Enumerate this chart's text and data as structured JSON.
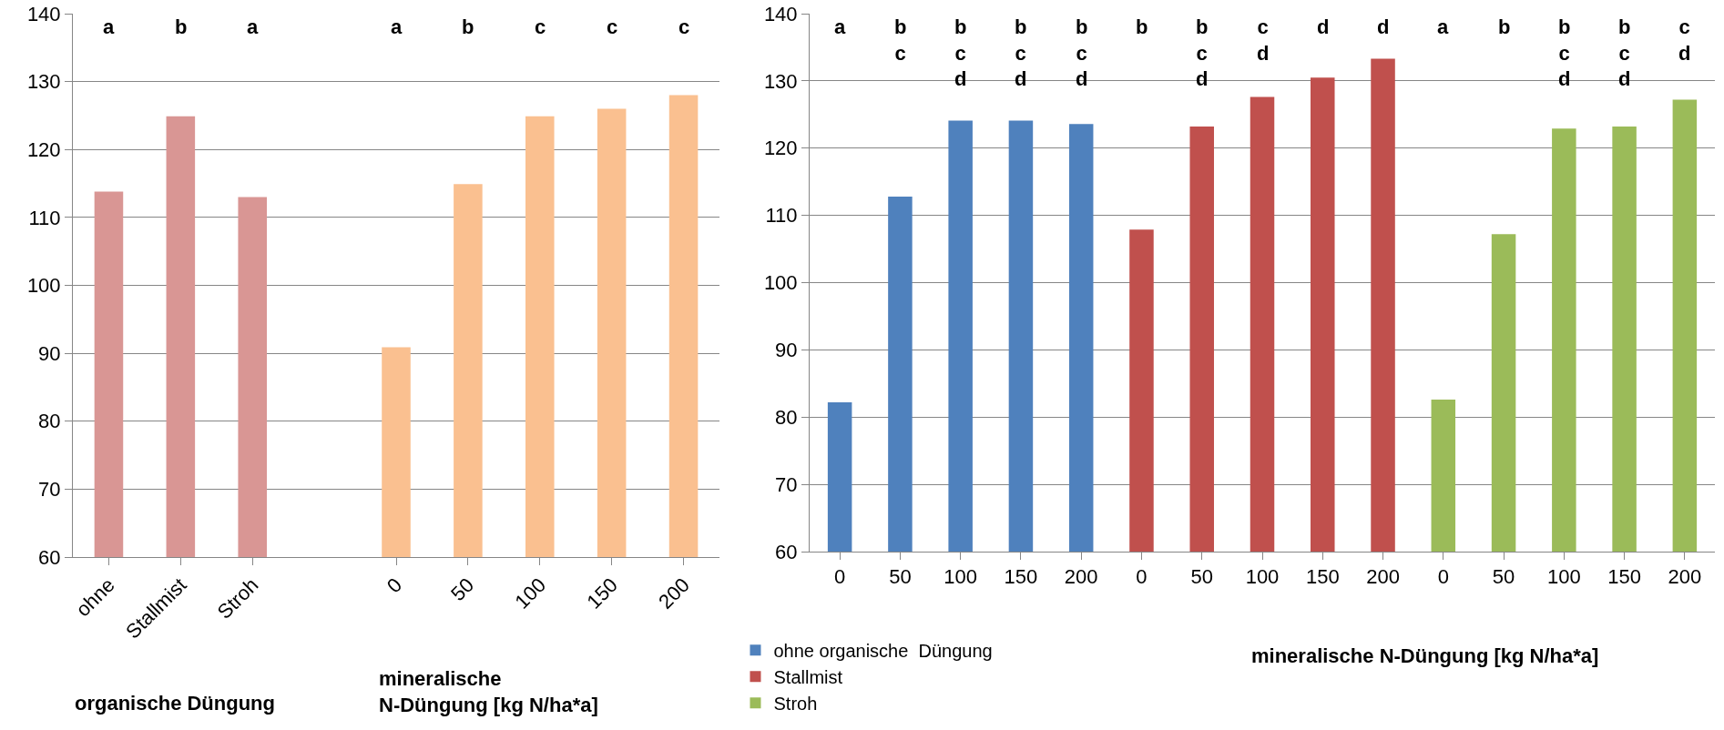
{
  "chart_data": [
    {
      "type": "bar",
      "categories": [
        "ohne",
        "Stallmist",
        "Stroh",
        null,
        "0",
        "50",
        "100",
        "150",
        "200"
      ],
      "values": [
        113.8,
        124.9,
        113,
        null,
        90.9,
        114.9,
        124.9,
        126,
        128
      ],
      "colors": [
        "#d99694",
        "#d99694",
        "#d99694",
        "#d99694",
        "#fac090",
        "#fac090",
        "#fac090",
        "#fac090",
        "#fac090"
      ],
      "xlabel": "mineralische\nN-Düngung [kg N/ha*a]",
      "ylim": [
        60,
        140
      ],
      "yticks": [
        60,
        70,
        80,
        90,
        100,
        110,
        120,
        130,
        140
      ],
      "grid": "y",
      "legend": false,
      "annotations": [
        "a",
        "b",
        "a",
        "a",
        "b",
        "c",
        "c",
        "c",
        "organische Düngung"
      ]
    },
    {
      "type": "bar",
      "categories": [
        "0",
        "50",
        "100",
        "150",
        "200",
        "0",
        "50",
        "100",
        "150",
        "200",
        "0",
        "50",
        "100",
        "150",
        "200"
      ],
      "series": [
        {
          "name": "ohne organische  Düngung",
          "color": "#4f81bd",
          "values": [
            82.2,
            112.8,
            124.1,
            124.1,
            123.6,
            null,
            null,
            null,
            null,
            null,
            null,
            null,
            null,
            null,
            null
          ]
        },
        {
          "name": "Stallmist",
          "color": "#c0504d",
          "values": [
            null,
            null,
            null,
            null,
            null,
            107.9,
            123.2,
            127.6,
            130.5,
            133.3,
            null,
            null,
            null,
            null,
            null
          ]
        },
        {
          "name": "Stroh",
          "color": "#9bbb59",
          "values": [
            null,
            null,
            null,
            null,
            null,
            null,
            null,
            null,
            null,
            null,
            82.6,
            107.2,
            122.9,
            123.2,
            127.2
          ]
        }
      ],
      "xlabel": "mineralische N-Düngung [kg N/ha*a]",
      "ylim": [
        60,
        140
      ],
      "yticks": [
        60,
        70,
        80,
        90,
        100,
        110,
        120,
        130,
        140
      ],
      "grid": "y",
      "legend": "bottom left",
      "annotations": [
        "a",
        "b\nc",
        "b\nc\nd",
        "b\nc\nd",
        "b\nc\nd",
        "b",
        "b\nc\nd",
        "c\nd",
        "d",
        "d",
        "a",
        "b",
        "b\nc\nd",
        "b\nc\nd",
        "c\nd"
      ]
    }
  ]
}
